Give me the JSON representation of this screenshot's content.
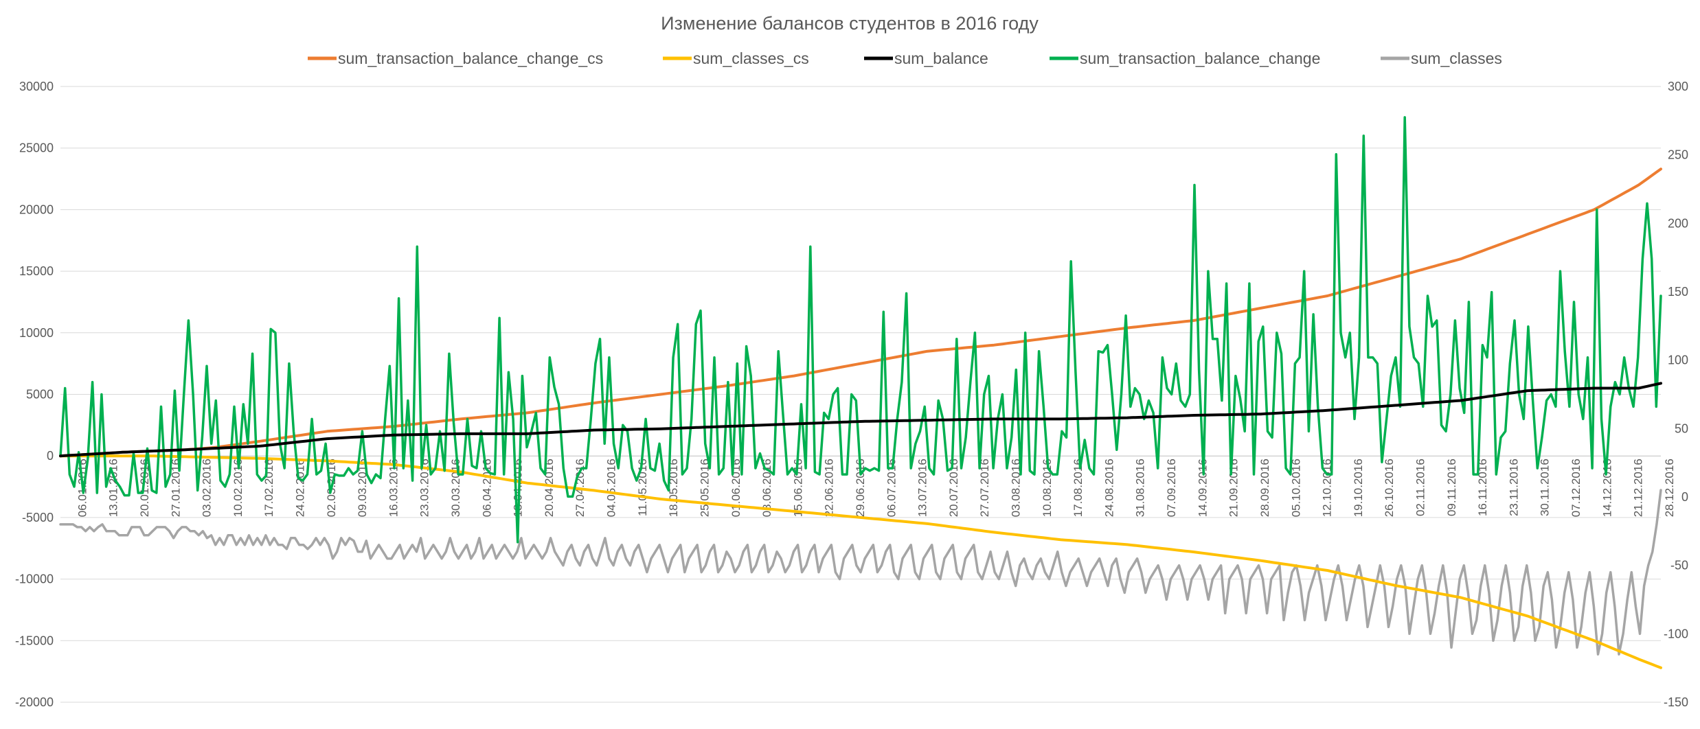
{
  "chart_data": {
    "type": "line",
    "title": "Изменение балансов студентов в 2016 году",
    "legend_position": "top",
    "grid": true,
    "y_left": {
      "range": [
        -20000,
        30000
      ],
      "step": 5000,
      "ticks": [
        "30000",
        "25000",
        "20000",
        "15000",
        "10000",
        "5000",
        "0",
        "-5000",
        "-10000",
        "-15000",
        "-20000"
      ]
    },
    "y_right": {
      "range": [
        -150,
        300
      ],
      "step": 50,
      "ticks": [
        "300",
        "250",
        "200",
        "150",
        "100",
        "50",
        "0",
        "-50",
        "-100",
        "-150"
      ]
    },
    "x_tick_labels": [
      "06.01.2016",
      "13.01.2016",
      "20.01.2016",
      "27.01.2016",
      "03.02.2016",
      "10.02.2016",
      "17.02.2016",
      "24.02.2016",
      "02.03.2016",
      "09.03.2016",
      "16.03.2016",
      "23.03.2016",
      "30.03.2016",
      "06.04.2016",
      "13.04.2016",
      "20.04.2016",
      "27.04.2016",
      "04.05.2016",
      "11.05.2016",
      "18.05.2016",
      "25.05.2016",
      "01.06.2016",
      "08.06.2016",
      "15.06.2016",
      "22.06.2016",
      "29.06.2016",
      "06.07.2016",
      "13.07.2016",
      "20.07.2016",
      "27.07.2016",
      "03.08.2016",
      "10.08.2016",
      "17.08.2016",
      "24.08.2016",
      "31.08.2016",
      "07.09.2016",
      "14.09.2016",
      "21.09.2016",
      "28.09.2016",
      "05.10.2016",
      "12.10.2016",
      "19.10.2016",
      "26.10.2016",
      "02.11.2016",
      "09.11.2016",
      "16.11.2016",
      "23.11.2016",
      "30.11.2016",
      "07.12.2016",
      "14.12.2016",
      "21.12.2016",
      "28.12.2016"
    ],
    "x_days": 360,
    "colors": {
      "sum_transaction_balance_change_cs": "#ed7d31",
      "sum_classes_cs": "#ffc000",
      "sum_balance": "#000000",
      "sum_transaction_balance_change": "#00b050",
      "sum_classes": "#a5a5a5"
    },
    "series": [
      {
        "name": "sum_transaction_balance_change_cs",
        "axis": "left",
        "anchors": [
          [
            0,
            0
          ],
          [
            14,
            300
          ],
          [
            28,
            500
          ],
          [
            35,
            700
          ],
          [
            45,
            1200
          ],
          [
            60,
            2000
          ],
          [
            75,
            2400
          ],
          [
            90,
            3000
          ],
          [
            105,
            3500
          ],
          [
            120,
            4300
          ],
          [
            135,
            5000
          ],
          [
            150,
            5700
          ],
          [
            165,
            6500
          ],
          [
            180,
            7500
          ],
          [
            195,
            8500
          ],
          [
            210,
            9000
          ],
          [
            225,
            9700
          ],
          [
            240,
            10400
          ],
          [
            255,
            11000
          ],
          [
            270,
            12000
          ],
          [
            285,
            13000
          ],
          [
            300,
            14500
          ],
          [
            315,
            16000
          ],
          [
            330,
            18000
          ],
          [
            345,
            20000
          ],
          [
            355,
            22000
          ],
          [
            360,
            23300
          ]
        ]
      },
      {
        "name": "sum_classes_cs",
        "axis": "left",
        "anchors": [
          [
            0,
            0
          ],
          [
            20,
            0
          ],
          [
            45,
            -200
          ],
          [
            60,
            -400
          ],
          [
            75,
            -700
          ],
          [
            90,
            -1300
          ],
          [
            105,
            -2200
          ],
          [
            120,
            -2800
          ],
          [
            135,
            -3500
          ],
          [
            150,
            -4000
          ],
          [
            165,
            -4500
          ],
          [
            180,
            -5000
          ],
          [
            195,
            -5500
          ],
          [
            210,
            -6200
          ],
          [
            225,
            -6800
          ],
          [
            240,
            -7200
          ],
          [
            255,
            -7800
          ],
          [
            270,
            -8500
          ],
          [
            285,
            -9300
          ],
          [
            300,
            -10500
          ],
          [
            315,
            -11500
          ],
          [
            330,
            -13000
          ],
          [
            345,
            -15000
          ],
          [
            355,
            -16500
          ],
          [
            360,
            -17200
          ]
        ]
      },
      {
        "name": "sum_balance",
        "axis": "left",
        "anchors": [
          [
            0,
            0
          ],
          [
            14,
            300
          ],
          [
            28,
            500
          ],
          [
            45,
            800
          ],
          [
            60,
            1400
          ],
          [
            75,
            1700
          ],
          [
            90,
            1800
          ],
          [
            105,
            1800
          ],
          [
            120,
            2100
          ],
          [
            135,
            2200
          ],
          [
            150,
            2400
          ],
          [
            165,
            2600
          ],
          [
            180,
            2800
          ],
          [
            195,
            2900
          ],
          [
            210,
            3000
          ],
          [
            225,
            3000
          ],
          [
            240,
            3100
          ],
          [
            255,
            3300
          ],
          [
            270,
            3400
          ],
          [
            285,
            3700
          ],
          [
            300,
            4100
          ],
          [
            315,
            4500
          ],
          [
            330,
            5300
          ],
          [
            345,
            5500
          ],
          [
            355,
            5500
          ],
          [
            360,
            5900
          ]
        ]
      },
      {
        "name": "sum_transaction_balance_change",
        "axis": "left",
        "values": [
          0,
          5500,
          -1500,
          -2500,
          300,
          -3000,
          -200,
          6000,
          -3000,
          5000,
          -2500,
          -1000,
          -2000,
          -2500,
          -3200,
          -3200,
          200,
          -3000,
          -3000,
          600,
          -2800,
          -3000,
          4000,
          -2500,
          -1500,
          5300,
          -1200,
          5000,
          11000,
          5000,
          -2800,
          1500,
          7300,
          1000,
          4500,
          -2000,
          -2500,
          -1500,
          4000,
          -1000,
          4200,
          1000,
          8300,
          -1500,
          -2000,
          -1600,
          10300,
          10000,
          1000,
          -1000,
          7500,
          2000,
          -1800,
          -2000,
          -1500,
          3000,
          -1500,
          -1200,
          1000,
          -3000,
          -1500,
          -1600,
          -1600,
          -1000,
          -1500,
          -1200,
          2000,
          -1500,
          -2200,
          -1500,
          -1800,
          3000,
          7300,
          -1000,
          12800,
          -1000,
          4500,
          -2000,
          17000,
          -1000,
          2500,
          -1500,
          -1000,
          2000,
          -1200,
          8300,
          2700,
          -1500,
          -1500,
          3000,
          -800,
          -1000,
          2000,
          -1000,
          -1400,
          -1500,
          11200,
          -1500,
          6800,
          3000,
          -7000,
          6500,
          700,
          2000,
          3500,
          -1000,
          -1500,
          8000,
          5600,
          4200,
          -1000,
          -3300,
          -3300,
          -1700,
          -1000,
          -1000,
          3000,
          7500,
          9500,
          1000,
          8000,
          1000,
          -1000,
          2500,
          2000,
          -1000,
          -2000,
          -1000,
          3000,
          -1000,
          -1200,
          1000,
          -2000,
          -2800,
          8000,
          10700,
          -1500,
          -1000,
          3000,
          10700,
          11800,
          1000,
          -1000,
          8000,
          -1500,
          -1000,
          6000,
          -1500,
          7500,
          -1500,
          8900,
          6500,
          -1000,
          200,
          -1000,
          -1200,
          -1500,
          8500,
          3500,
          -1500,
          -1000,
          -1500,
          4200,
          -1000,
          17000,
          -1300,
          -1500,
          3500,
          3000,
          5000,
          5500,
          -1500,
          -1500,
          5000,
          4500,
          -1500,
          -1000,
          -1200,
          -1000,
          -1200,
          11700,
          -1000,
          -1000,
          3000,
          6000,
          13200,
          -1000,
          1000,
          2000,
          4000,
          -1000,
          -1500,
          4500,
          3000,
          -1200,
          -1000,
          9500,
          -1000,
          1500,
          6000,
          10000,
          -1000,
          5000,
          6500,
          -1000,
          3000,
          5000,
          -1000,
          1500,
          7000,
          -1500,
          10000,
          -1200,
          -1500,
          8500,
          4000,
          -1000,
          -1500,
          -1500,
          2000,
          1500,
          15800,
          6800,
          -1000,
          1300,
          -1000,
          -1500,
          8500,
          8400,
          9000,
          5000,
          500,
          5000,
          11400,
          4000,
          5500,
          5000,
          3000,
          4500,
          3500,
          -1000,
          8000,
          5500,
          5000,
          7500,
          4500,
          4000,
          5000,
          22000,
          7000,
          -1500,
          15000,
          9500,
          9500,
          4500,
          14000,
          -1500,
          6500,
          4700,
          2000,
          14000,
          -1500,
          9300,
          10500,
          2000,
          1500,
          10000,
          8300,
          -1000,
          -1500,
          7500,
          8000,
          15000,
          2000,
          11500,
          4000,
          -1000,
          -1500,
          -1500,
          24500,
          10000,
          8000,
          10000,
          3000,
          8000,
          26000,
          8000,
          8000,
          7500,
          -500,
          3000,
          6500,
          8000,
          4000,
          27500,
          10500,
          8000,
          7500,
          4000,
          13000,
          10500,
          11000,
          2500,
          2000,
          5000,
          11000,
          5500,
          3500,
          12500,
          -1500,
          -1500,
          9000,
          8000,
          13300,
          -1500,
          1500,
          2000,
          7500,
          11000,
          5000,
          3000,
          10500,
          4500,
          -1000,
          1500,
          4500,
          5000,
          4000,
          15000,
          8500,
          4000,
          12500,
          5000,
          3000,
          8000,
          -1000,
          20000,
          3000,
          -1500,
          4000,
          6000,
          5000,
          8000,
          5500,
          4000,
          8000,
          16000,
          20500,
          16000,
          4000,
          13000
        ]
      },
      {
        "name": "sum_classes",
        "axis": "right",
        "values": [
          -20,
          -20,
          -20,
          -20,
          -22,
          -22,
          -25,
          -22,
          -25,
          -22,
          -20,
          -25,
          -25,
          -25,
          -28,
          -28,
          -28,
          -22,
          -22,
          -22,
          -28,
          -28,
          -25,
          -22,
          -22,
          -22,
          -25,
          -30,
          -25,
          -22,
          -22,
          -25,
          -25,
          -28,
          -25,
          -30,
          -28,
          -35,
          -30,
          -35,
          -28,
          -28,
          -35,
          -30,
          -35,
          -28,
          -35,
          -30,
          -35,
          -28,
          -35,
          -30,
          -35,
          -35,
          -38,
          -30,
          -30,
          -35,
          -35,
          -38,
          -35,
          -30,
          -35,
          -30,
          -35,
          -45,
          -40,
          -30,
          -35,
          -30,
          -32,
          -40,
          -40,
          -32,
          -45,
          -40,
          -35,
          -40,
          -45,
          -45,
          -40,
          -35,
          -45,
          -40,
          -35,
          -40,
          -30,
          -45,
          -40,
          -35,
          -40,
          -45,
          -40,
          -30,
          -40,
          -45,
          -40,
          -35,
          -45,
          -40,
          -30,
          -45,
          -40,
          -35,
          -45,
          -40,
          -35,
          -40,
          -45,
          -40,
          -30,
          -45,
          -40,
          -35,
          -40,
          -45,
          -40,
          -30,
          -40,
          -45,
          -50,
          -40,
          -35,
          -45,
          -50,
          -40,
          -35,
          -45,
          -50,
          -40,
          -30,
          -45,
          -50,
          -40,
          -35,
          -45,
          -50,
          -40,
          -35,
          -45,
          -55,
          -45,
          -40,
          -35,
          -45,
          -55,
          -45,
          -40,
          -35,
          -55,
          -45,
          -40,
          -35,
          -55,
          -50,
          -40,
          -35,
          -55,
          -50,
          -40,
          -45,
          -55,
          -50,
          -40,
          -35,
          -55,
          -50,
          -40,
          -35,
          -55,
          -50,
          -40,
          -45,
          -55,
          -50,
          -40,
          -35,
          -55,
          -50,
          -40,
          -35,
          -55,
          -45,
          -40,
          -35,
          -55,
          -60,
          -45,
          -40,
          -35,
          -50,
          -55,
          -45,
          -40,
          -35,
          -55,
          -50,
          -40,
          -35,
          -55,
          -60,
          -45,
          -40,
          -35,
          -55,
          -60,
          -45,
          -40,
          -35,
          -55,
          -60,
          -45,
          -40,
          -35,
          -55,
          -60,
          -45,
          -40,
          -35,
          -55,
          -60,
          -50,
          -40,
          -55,
          -60,
          -50,
          -40,
          -55,
          -65,
          -50,
          -45,
          -55,
          -60,
          -50,
          -45,
          -55,
          -60,
          -50,
          -40,
          -55,
          -65,
          -55,
          -50,
          -45,
          -55,
          -65,
          -55,
          -50,
          -45,
          -55,
          -65,
          -50,
          -45,
          -60,
          -70,
          -55,
          -50,
          -45,
          -55,
          -70,
          -60,
          -55,
          -50,
          -60,
          -75,
          -60,
          -55,
          -50,
          -60,
          -75,
          -60,
          -55,
          -50,
          -60,
          -75,
          -60,
          -55,
          -50,
          -85,
          -60,
          -55,
          -50,
          -60,
          -85,
          -60,
          -55,
          -50,
          -60,
          -85,
          -60,
          -55,
          -50,
          -90,
          -70,
          -55,
          -50,
          -65,
          -90,
          -70,
          -60,
          -50,
          -65,
          -90,
          -75,
          -60,
          -50,
          -65,
          -90,
          -75,
          -60,
          -50,
          -65,
          -95,
          -80,
          -65,
          -50,
          -65,
          -95,
          -80,
          -60,
          -50,
          -65,
          -100,
          -80,
          -60,
          -50,
          -70,
          -100,
          -85,
          -65,
          -50,
          -70,
          -110,
          -85,
          -60,
          -50,
          -70,
          -100,
          -90,
          -65,
          -50,
          -70,
          -105,
          -90,
          -65,
          -50,
          -70,
          -105,
          -95,
          -65,
          -50,
          -70,
          -105,
          -95,
          -65,
          -55,
          -75,
          -110,
          -95,
          -70,
          -55,
          -75,
          -110,
          -95,
          -70,
          -55,
          -80,
          -115,
          -100,
          -70,
          -55,
          -80,
          -115,
          -100,
          -75,
          -55,
          -80,
          -100,
          -65,
          -50,
          -40,
          -20,
          5
        ]
      }
    ]
  }
}
